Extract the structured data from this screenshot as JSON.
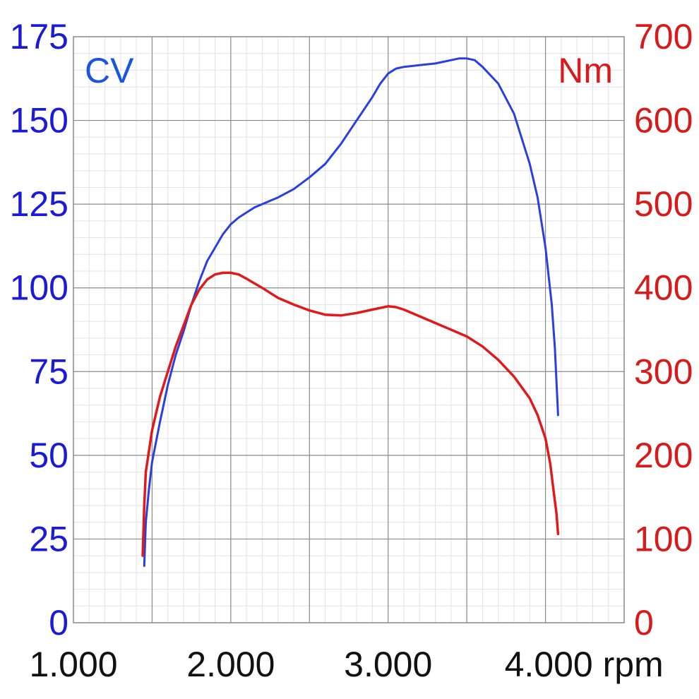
{
  "chart_data": {
    "type": "line",
    "xlim": [
      1000,
      4500
    ],
    "x_ticks": [
      {
        "value": 1000,
        "label": "1.000"
      },
      {
        "value": 2000,
        "label": "2.000"
      },
      {
        "value": 3000,
        "label": "3.000"
      },
      {
        "value": 4000,
        "label": "4.000 rpm"
      }
    ],
    "y_left": {
      "label": "CV",
      "color": "#1a1ad8",
      "lim": [
        0,
        175
      ],
      "ticks": [
        "0",
        "25",
        "50",
        "75",
        "100",
        "125",
        "150",
        "175"
      ]
    },
    "y_right": {
      "label": "Nm",
      "color": "#d81a1a",
      "lim": [
        0,
        700
      ],
      "ticks": [
        "0",
        "100",
        "200",
        "300",
        "400",
        "500",
        "600",
        "700"
      ]
    },
    "grid": true,
    "series": [
      {
        "axis": "left",
        "color": "#2a3fe0",
        "points": [
          [
            1450,
            17
          ],
          [
            1460,
            30
          ],
          [
            1480,
            40
          ],
          [
            1500,
            48
          ],
          [
            1550,
            60
          ],
          [
            1600,
            71
          ],
          [
            1650,
            80
          ],
          [
            1700,
            87
          ],
          [
            1750,
            95
          ],
          [
            1800,
            102
          ],
          [
            1850,
            108
          ],
          [
            1900,
            112
          ],
          [
            1950,
            116
          ],
          [
            2000,
            119
          ],
          [
            2050,
            121
          ],
          [
            2100,
            122.5
          ],
          [
            2150,
            124
          ],
          [
            2200,
            125
          ],
          [
            2300,
            127
          ],
          [
            2400,
            129.5
          ],
          [
            2500,
            133
          ],
          [
            2600,
            137
          ],
          [
            2700,
            143
          ],
          [
            2800,
            150
          ],
          [
            2900,
            157
          ],
          [
            2950,
            161
          ],
          [
            3000,
            164
          ],
          [
            3050,
            165.5
          ],
          [
            3100,
            166
          ],
          [
            3200,
            166.5
          ],
          [
            3300,
            167
          ],
          [
            3400,
            168
          ],
          [
            3450,
            168.5
          ],
          [
            3500,
            168.5
          ],
          [
            3550,
            168
          ],
          [
            3600,
            166
          ],
          [
            3700,
            161
          ],
          [
            3800,
            152
          ],
          [
            3900,
            137
          ],
          [
            3950,
            127
          ],
          [
            4000,
            112
          ],
          [
            4040,
            95
          ],
          [
            4060,
            82
          ],
          [
            4080,
            62
          ]
        ]
      },
      {
        "axis": "right",
        "color": "#e01a1a",
        "points": [
          [
            1440,
            80
          ],
          [
            1450,
            140
          ],
          [
            1460,
            180
          ],
          [
            1500,
            230
          ],
          [
            1550,
            270
          ],
          [
            1600,
            300
          ],
          [
            1650,
            330
          ],
          [
            1700,
            355
          ],
          [
            1750,
            380
          ],
          [
            1800,
            398
          ],
          [
            1850,
            410
          ],
          [
            1900,
            416
          ],
          [
            1950,
            418
          ],
          [
            2000,
            418
          ],
          [
            2050,
            416
          ],
          [
            2100,
            411
          ],
          [
            2200,
            400
          ],
          [
            2300,
            388
          ],
          [
            2400,
            380
          ],
          [
            2500,
            373
          ],
          [
            2600,
            368
          ],
          [
            2700,
            367
          ],
          [
            2800,
            370
          ],
          [
            2900,
            374
          ],
          [
            3000,
            378
          ],
          [
            3050,
            377
          ],
          [
            3100,
            374
          ],
          [
            3200,
            366
          ],
          [
            3300,
            358
          ],
          [
            3400,
            350
          ],
          [
            3500,
            342
          ],
          [
            3600,
            330
          ],
          [
            3700,
            314
          ],
          [
            3800,
            294
          ],
          [
            3900,
            268
          ],
          [
            3950,
            248
          ],
          [
            4000,
            220
          ],
          [
            4030,
            190
          ],
          [
            4050,
            160
          ],
          [
            4070,
            130
          ],
          [
            4080,
            106
          ]
        ]
      }
    ]
  }
}
